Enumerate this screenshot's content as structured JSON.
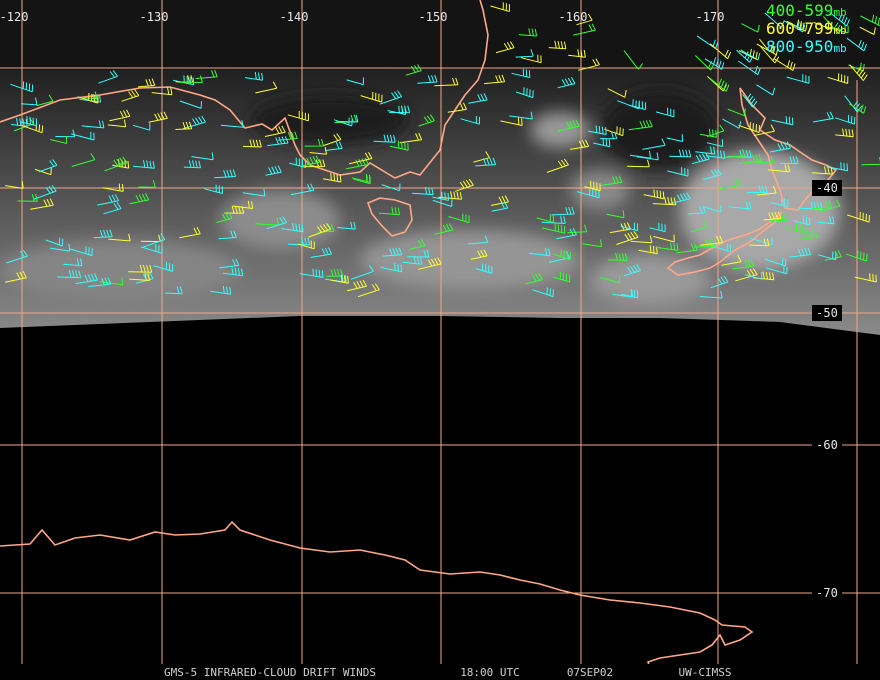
{
  "map": {
    "longitude_labels": [
      "-120",
      "-130",
      "-140",
      "-150",
      "-160",
      "-170"
    ],
    "latitude_labels": [
      "-40",
      "-50",
      "-60",
      "-70"
    ],
    "legend": [
      {
        "label": "400-599",
        "unit": "mb",
        "color": "#33ff33"
      },
      {
        "label": "600-799",
        "unit": "mb",
        "color": "#ffff33"
      },
      {
        "label": "800-950",
        "unit": "mb",
        "color": "#33ffff"
      }
    ],
    "footer": [
      "GMS-5 INFRARED-CLOUD DRIFT WINDS",
      "18:00 UTC",
      "07SEP02",
      "UW-CIMSS"
    ]
  }
}
